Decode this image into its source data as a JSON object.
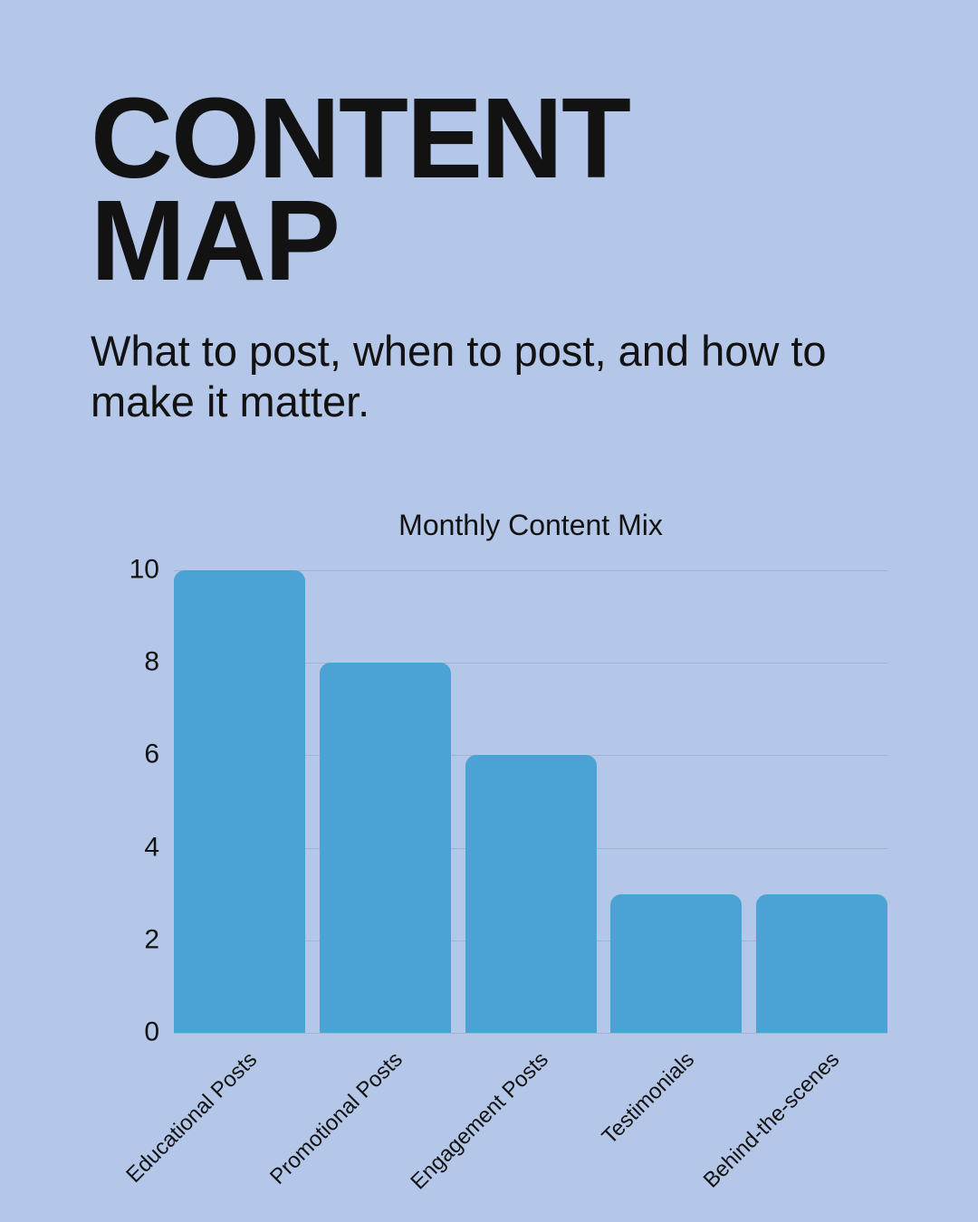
{
  "page": {
    "background_color": "#b4c7e8",
    "text_color": "#121212"
  },
  "header": {
    "title_lines": [
      "CONTENT",
      "MAP"
    ],
    "subtitle_lines": [
      "What to post, when to post, and how to",
      "make it matter."
    ]
  },
  "chart_data": {
    "type": "bar",
    "title": "Monthly Content Mix",
    "categories": [
      "Educational Posts",
      "Promotional Posts",
      "Engagement Posts",
      "Testimonials",
      "Behind-the-scenes"
    ],
    "values": [
      10,
      8,
      6,
      3,
      3
    ],
    "xlabel": "",
    "ylabel": "",
    "ylim": [
      0,
      10
    ],
    "yticks": [
      0,
      2,
      4,
      6,
      8,
      10
    ],
    "grid": true,
    "legend_position": "none",
    "x_tick_rotation_deg": 45,
    "bar_color": "#4aa3d4",
    "grid_color": "#a4b3ce"
  }
}
